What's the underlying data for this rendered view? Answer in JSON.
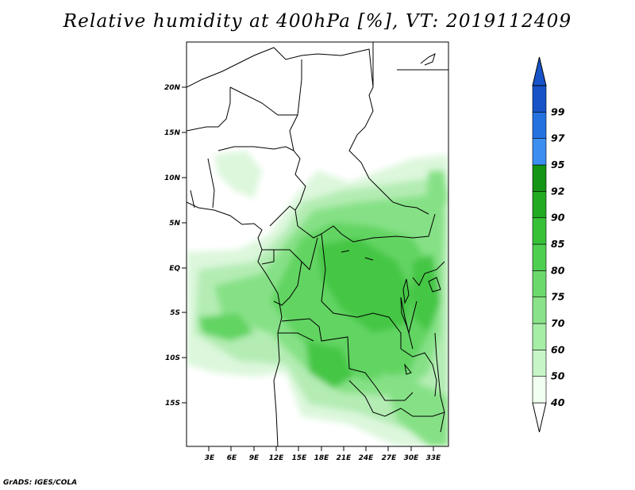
{
  "title": "Relative humidity at 400hPa [%], VT: 2019112409",
  "credit": "GrADS: IGES/COLA",
  "map": {
    "lat_labels": [
      "20N",
      "15N",
      "10N",
      "5N",
      "EQ",
      "5S",
      "10S",
      "15S"
    ],
    "lon_labels": [
      "3E",
      "6E",
      "9E",
      "12E",
      "15E",
      "18E",
      "21E",
      "24E",
      "27E",
      "30E",
      "33E"
    ]
  },
  "colorbar": {
    "labels": [
      "40",
      "50",
      "60",
      "70",
      "75",
      "80",
      "85",
      "90",
      "92",
      "95",
      "97",
      "99"
    ],
    "colors": [
      "#f0fff0",
      "#c8f5c8",
      "#a6eda6",
      "#8ae38a",
      "#6cd96c",
      "#4fcf4f",
      "#37c137",
      "#22aa22",
      "#159515",
      "#3c8ff0",
      "#2472e0",
      "#1854c8"
    ]
  },
  "colors": {
    "land_line": "#000000",
    "frame": "#000000"
  }
}
